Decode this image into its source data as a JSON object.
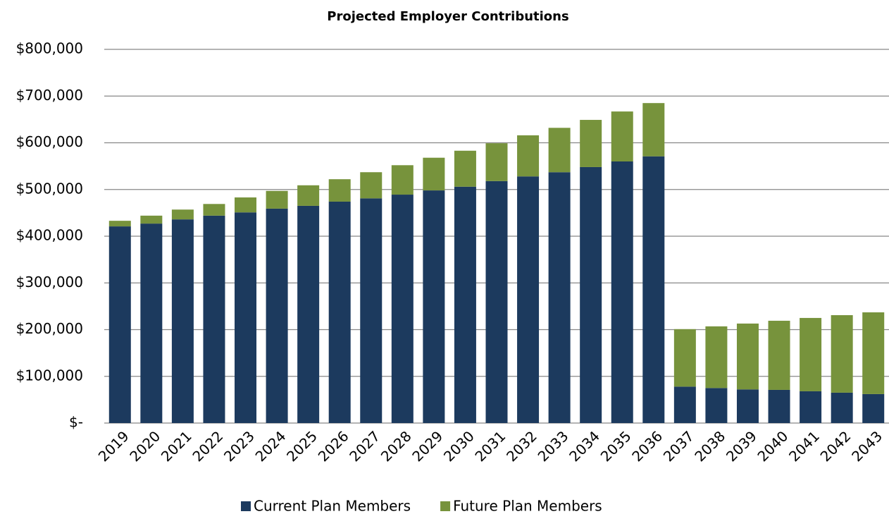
{
  "chart_data": {
    "type": "bar",
    "stacked": true,
    "title": "Projected Employer Contributions",
    "categories": [
      "2019",
      "2020",
      "2021",
      "2022",
      "2023",
      "2024",
      "2025",
      "2026",
      "2027",
      "2028",
      "2029",
      "2030",
      "2031",
      "2032",
      "2033",
      "2034",
      "2035",
      "2036",
      "2037",
      "2038",
      "2039",
      "2040",
      "2041",
      "2042",
      "2043"
    ],
    "series": [
      {
        "name": "Current Plan Members",
        "color": "#1c3a5e",
        "values": [
          421000,
          427000,
          436000,
          444000,
          451000,
          459000,
          465000,
          474000,
          481000,
          489000,
          498000,
          506000,
          518000,
          528000,
          537000,
          548000,
          560000,
          571000,
          78000,
          75000,
          72000,
          71000,
          68000,
          65000,
          62000
        ]
      },
      {
        "name": "Future Plan Members",
        "color": "#77933c",
        "values": [
          12000,
          17000,
          21000,
          25000,
          32000,
          38000,
          44000,
          48000,
          56000,
          63000,
          70000,
          77000,
          81000,
          88000,
          95000,
          101000,
          107000,
          114000,
          123000,
          132000,
          141000,
          148000,
          157000,
          166000,
          175000
        ]
      }
    ],
    "ylim": [
      0,
      800000
    ],
    "yticks": [
      {
        "value": 0,
        "label": "$-"
      },
      {
        "value": 100000,
        "label": "$100,000"
      },
      {
        "value": 200000,
        "label": "$200,000"
      },
      {
        "value": 300000,
        "label": "$300,000"
      },
      {
        "value": 400000,
        "label": "$400,000"
      },
      {
        "value": 500000,
        "label": "$500,000"
      },
      {
        "value": 600000,
        "label": "$600,000"
      },
      {
        "value": 700000,
        "label": "$700,000"
      },
      {
        "value": 800000,
        "label": "$800,000"
      }
    ],
    "grid": true,
    "legend": "bottom"
  }
}
